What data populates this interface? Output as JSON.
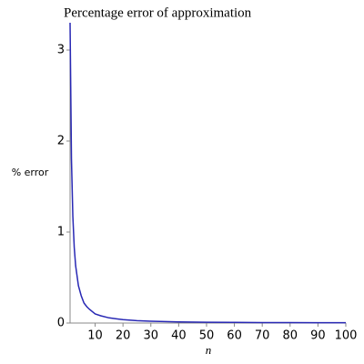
{
  "chart_data": {
    "type": "line",
    "title": "Percentage error of approximation",
    "ylabel": "% error",
    "xlabel": "n",
    "x": [
      1,
      1.5,
      2,
      2.5,
      3,
      4,
      5,
      6,
      7,
      8,
      10,
      12,
      15,
      20,
      25,
      30,
      40,
      50,
      60,
      70,
      80,
      90,
      100
    ],
    "series": [
      {
        "name": "error",
        "color": "#2828b4",
        "values": [
          3.3,
          1.8,
          1.17,
          0.83,
          0.63,
          0.41,
          0.3,
          0.22,
          0.18,
          0.15,
          0.1,
          0.08,
          0.057,
          0.037,
          0.026,
          0.02,
          0.013,
          0.009,
          0.007,
          0.0056,
          0.0046,
          0.0039,
          0.0033
        ]
      }
    ],
    "xlim": [
      1,
      100
    ],
    "xticks": [
      10,
      20,
      30,
      40,
      50,
      60,
      70,
      80,
      90,
      100
    ],
    "ylim": [
      0,
      3.3
    ],
    "yticks": [
      0,
      1,
      2,
      3
    ]
  }
}
